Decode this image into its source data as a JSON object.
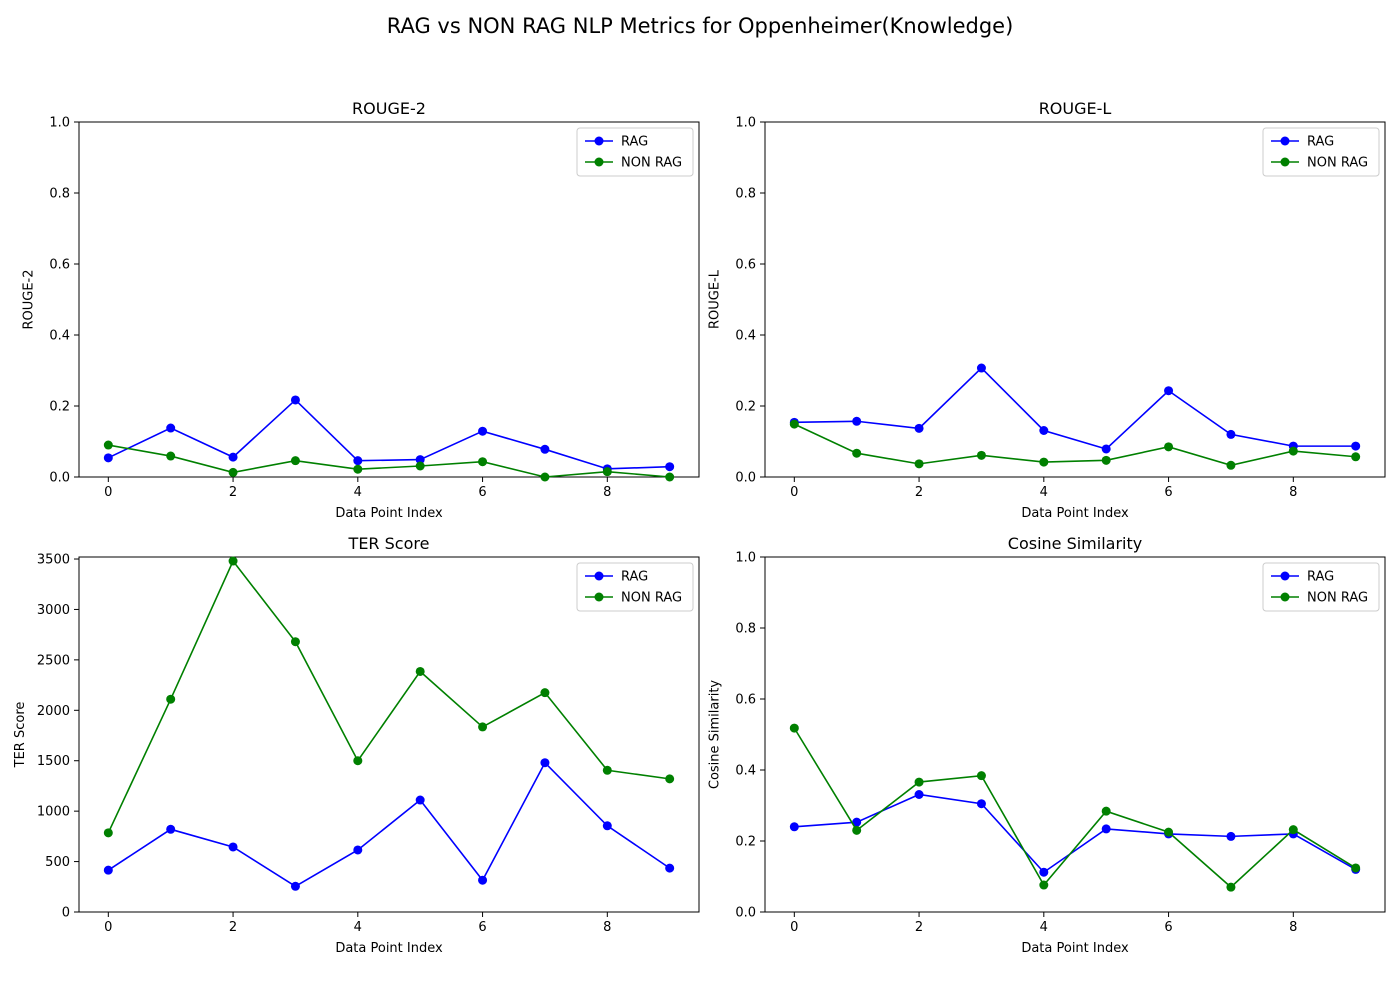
{
  "figure": {
    "title": "RAG vs NON RAG NLP Metrics for Oppenheimer(Knowledge)"
  },
  "chart_data": [
    {
      "type": "line",
      "title": "ROUGE-2",
      "xlabel": "Data Point Index",
      "ylabel": "ROUGE-2",
      "x": [
        0,
        1,
        2,
        3,
        4,
        5,
        6,
        7,
        8,
        9
      ],
      "xlim": [
        -0.47,
        9.47
      ],
      "ylim": [
        0,
        1.0
      ],
      "xticks": [
        0,
        2,
        4,
        6,
        8
      ],
      "yticks": [
        0.0,
        0.2,
        0.4,
        0.6,
        0.8,
        1.0
      ],
      "ytick_labels": [
        "0.0",
        "0.2",
        "0.4",
        "0.6",
        "0.8",
        "1.0"
      ],
      "legend": "top-right",
      "grid": false,
      "series": [
        {
          "name": "RAG",
          "color": "#0000ff",
          "values": [
            0.054,
            0.138,
            0.056,
            0.217,
            0.046,
            0.049,
            0.129,
            0.078,
            0.023,
            0.029
          ]
        },
        {
          "name": "NON RAG",
          "color": "#008000",
          "values": [
            0.09,
            0.059,
            0.013,
            0.046,
            0.022,
            0.031,
            0.043,
            0.0,
            0.015,
            0.0
          ]
        }
      ]
    },
    {
      "type": "line",
      "title": "ROUGE-L",
      "xlabel": "Data Point Index",
      "ylabel": "ROUGE-L",
      "x": [
        0,
        1,
        2,
        3,
        4,
        5,
        6,
        7,
        8,
        9
      ],
      "xlim": [
        -0.47,
        9.47
      ],
      "ylim": [
        0,
        1.0
      ],
      "xticks": [
        0,
        2,
        4,
        6,
        8
      ],
      "yticks": [
        0.0,
        0.2,
        0.4,
        0.6,
        0.8,
        1.0
      ],
      "ytick_labels": [
        "0.0",
        "0.2",
        "0.4",
        "0.6",
        "0.8",
        "1.0"
      ],
      "legend": "top-right",
      "grid": false,
      "series": [
        {
          "name": "RAG",
          "color": "#0000ff",
          "values": [
            0.154,
            0.157,
            0.137,
            0.307,
            0.131,
            0.079,
            0.243,
            0.12,
            0.087,
            0.087
          ]
        },
        {
          "name": "NON RAG",
          "color": "#008000",
          "values": [
            0.149,
            0.067,
            0.037,
            0.061,
            0.042,
            0.047,
            0.085,
            0.033,
            0.073,
            0.057
          ]
        }
      ]
    },
    {
      "type": "line",
      "title": "TER Score",
      "xlabel": "Data Point Index",
      "ylabel": "TER Score",
      "x": [
        0,
        1,
        2,
        3,
        4,
        5,
        6,
        7,
        8,
        9
      ],
      "xlim": [
        -0.47,
        9.47
      ],
      "ylim": [
        0,
        3520
      ],
      "xticks": [
        0,
        2,
        4,
        6,
        8
      ],
      "yticks": [
        0,
        500,
        1000,
        1500,
        2000,
        2500,
        3000,
        3500
      ],
      "ytick_labels": [
        "0",
        "500",
        "1000",
        "1500",
        "2000",
        "2500",
        "3000",
        "3500"
      ],
      "legend": "top-right",
      "grid": false,
      "series": [
        {
          "name": "RAG",
          "color": "#0000ff",
          "values": [
            415,
            820,
            645,
            255,
            615,
            1110,
            315,
            1480,
            855,
            435
          ]
        },
        {
          "name": "NON RAG",
          "color": "#008000",
          "values": [
            785,
            2110,
            3480,
            2680,
            1500,
            2385,
            1835,
            2175,
            1405,
            1320
          ]
        }
      ]
    },
    {
      "type": "line",
      "title": "Cosine Similarity",
      "xlabel": "Data Point Index",
      "ylabel": "Cosine Similarity",
      "x": [
        0,
        1,
        2,
        3,
        4,
        5,
        6,
        7,
        8,
        9
      ],
      "xlim": [
        -0.47,
        9.47
      ],
      "ylim": [
        0,
        1.0
      ],
      "xticks": [
        0,
        2,
        4,
        6,
        8
      ],
      "yticks": [
        0.0,
        0.2,
        0.4,
        0.6,
        0.8,
        1.0
      ],
      "ytick_labels": [
        "0.0",
        "0.2",
        "0.4",
        "0.6",
        "0.8",
        "1.0"
      ],
      "legend": "top-right",
      "grid": false,
      "series": [
        {
          "name": "RAG",
          "color": "#0000ff",
          "values": [
            0.24,
            0.253,
            0.331,
            0.305,
            0.112,
            0.234,
            0.22,
            0.213,
            0.22,
            0.12
          ]
        },
        {
          "name": "NON RAG",
          "color": "#008000",
          "values": [
            0.518,
            0.23,
            0.366,
            0.384,
            0.076,
            0.284,
            0.225,
            0.07,
            0.232,
            0.124
          ]
        }
      ]
    }
  ]
}
